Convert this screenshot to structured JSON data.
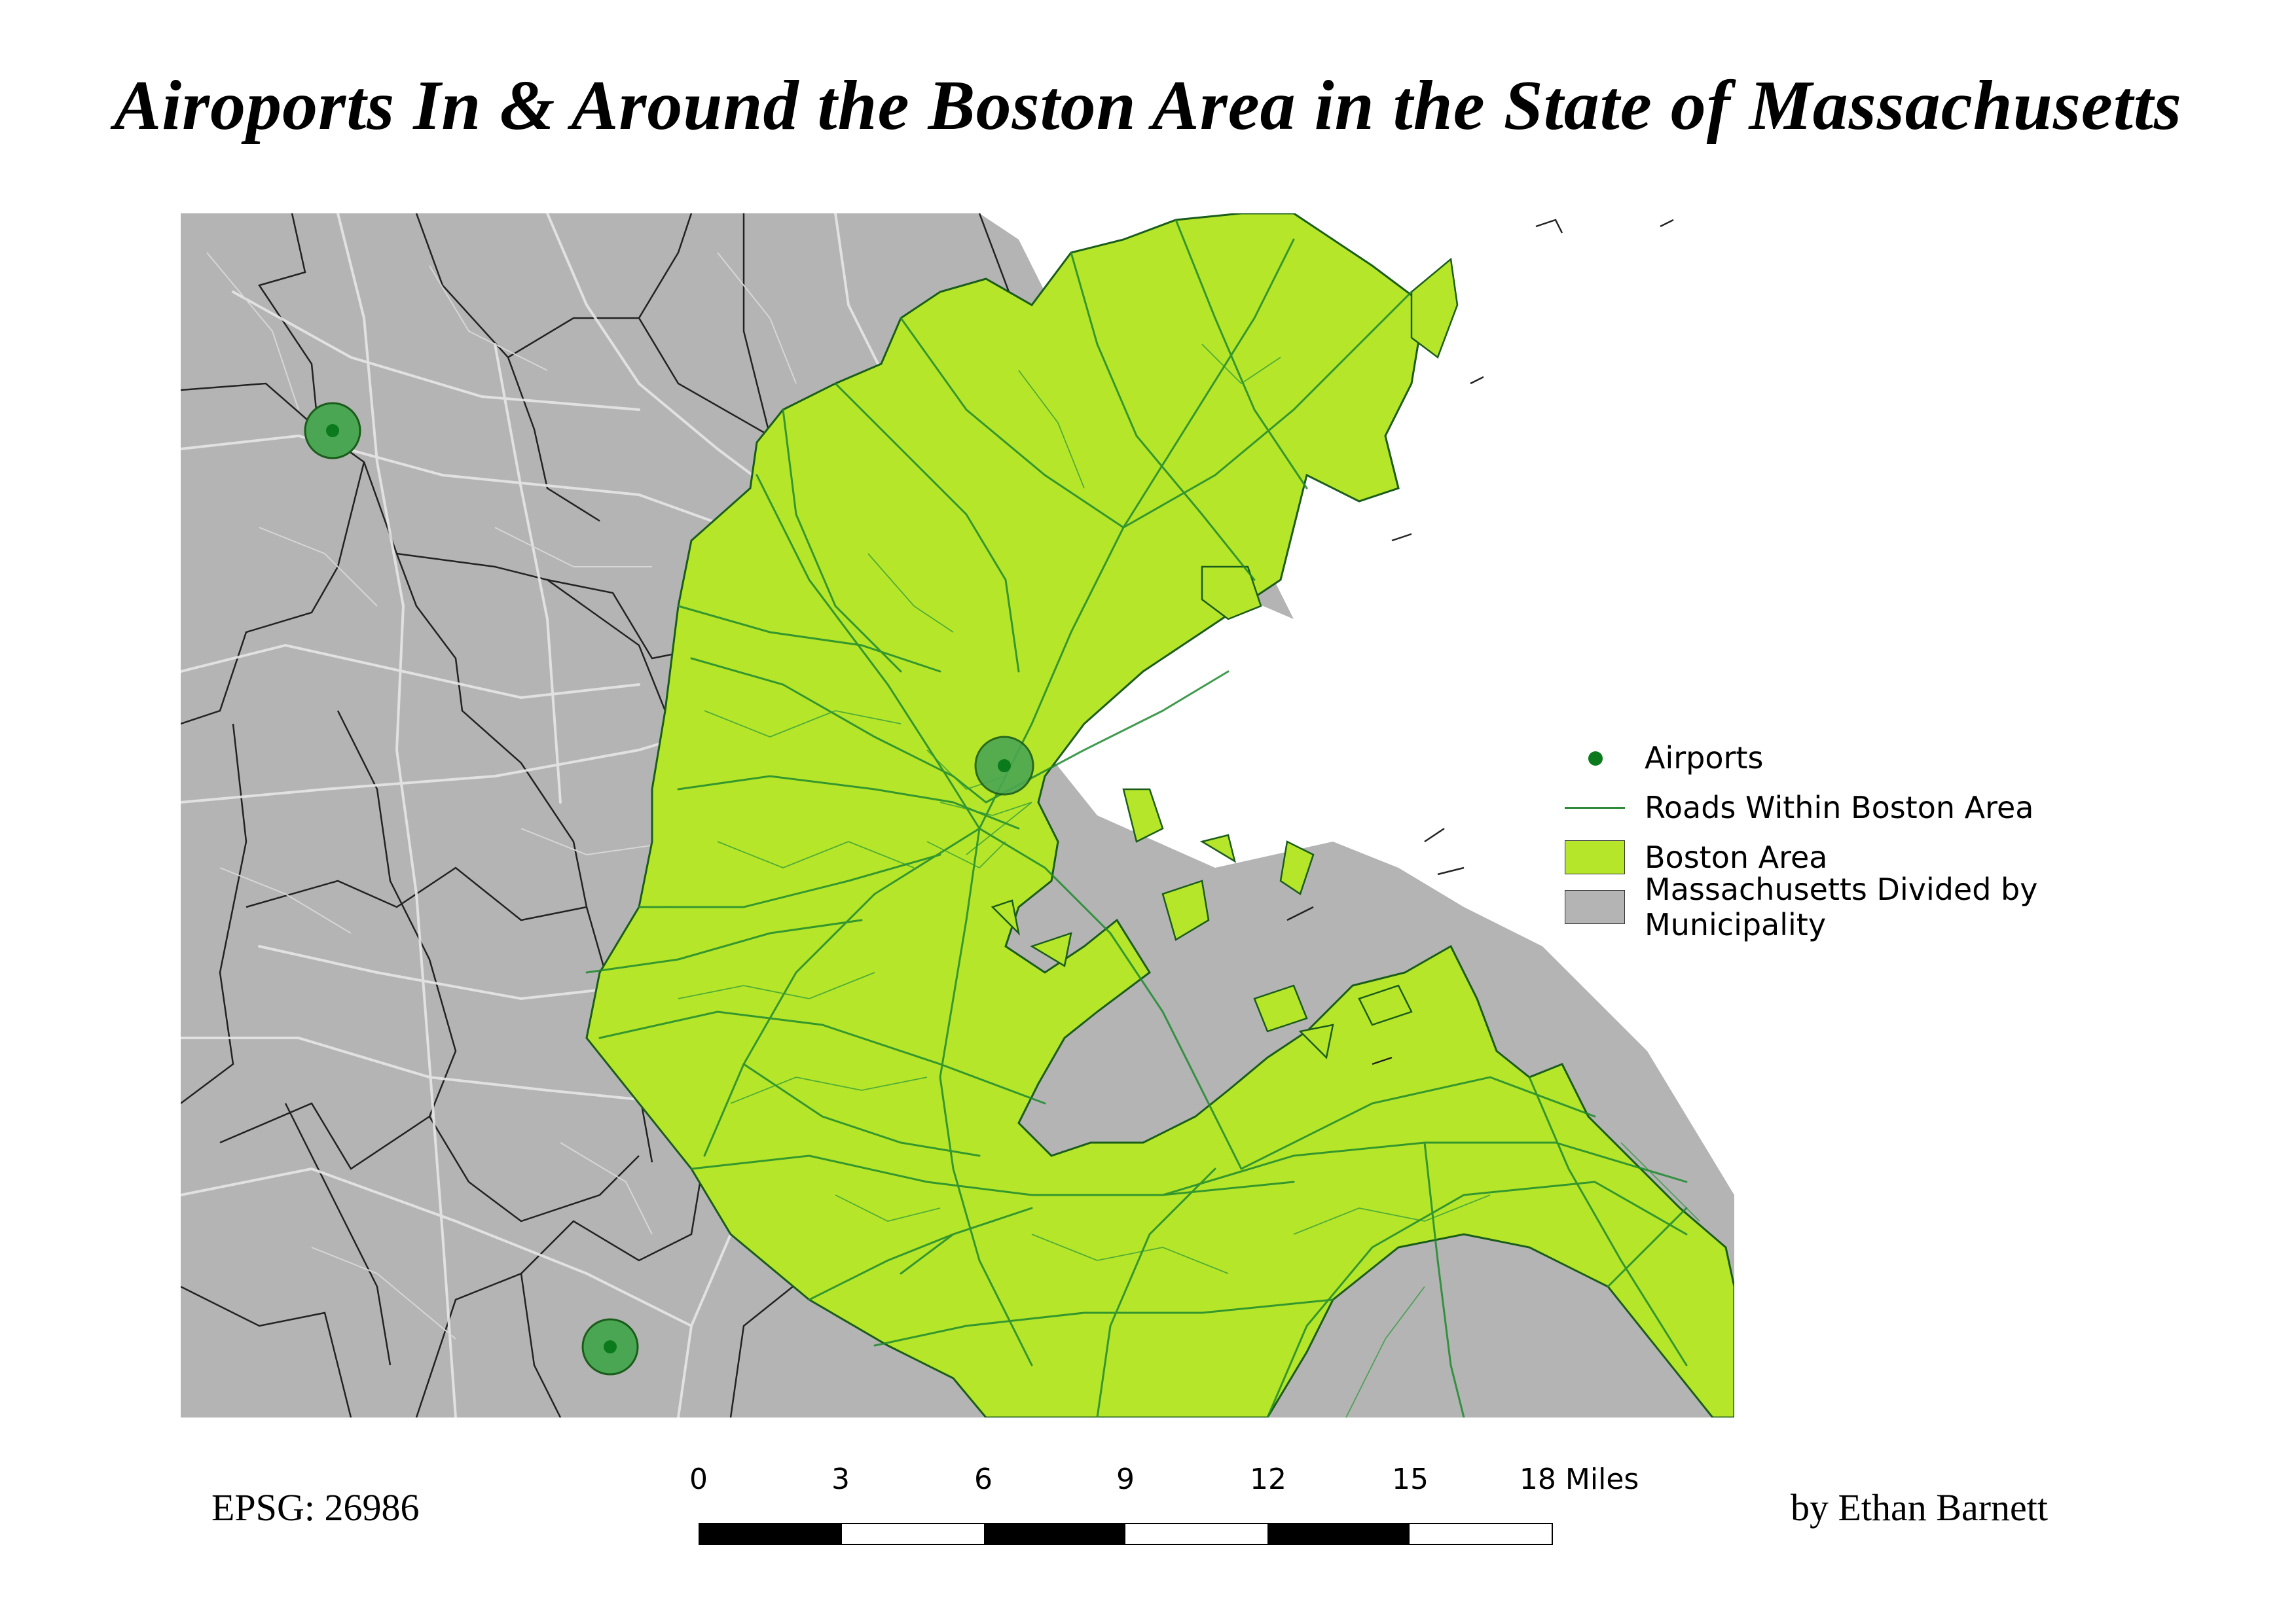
{
  "title": "Airoports In & Around the Boston Area in the State of Massachusetts",
  "colors": {
    "municipality_fill": "#b4b4b4",
    "boston_fill": "#b5e62a",
    "road_boston": "#1e8a2e",
    "road_outside": "#e6e6e6",
    "border": "#222222",
    "airport": "#0a7a1c",
    "airport_buffer": "#4aa653"
  },
  "legend": {
    "items": [
      {
        "label": "Airports",
        "symbol": "dot"
      },
      {
        "label": "Roads Within Boston Area",
        "symbol": "line"
      },
      {
        "label": "Boston Area",
        "symbol": "box-green"
      },
      {
        "label": "Massachusetts Divided by Municipality",
        "symbol": "box-gray"
      }
    ]
  },
  "airports": [
    {
      "name": "airport-northwest"
    },
    {
      "name": "airport-logan"
    },
    {
      "name": "airport-southwest"
    }
  ],
  "epsg_label": "EPSG: 26986",
  "author_label": "by Ethan Barnett",
  "scale_bar": {
    "ticks": [
      "0",
      "3",
      "6",
      "9",
      "12",
      "15",
      "18 Miles"
    ],
    "segments": 6
  }
}
